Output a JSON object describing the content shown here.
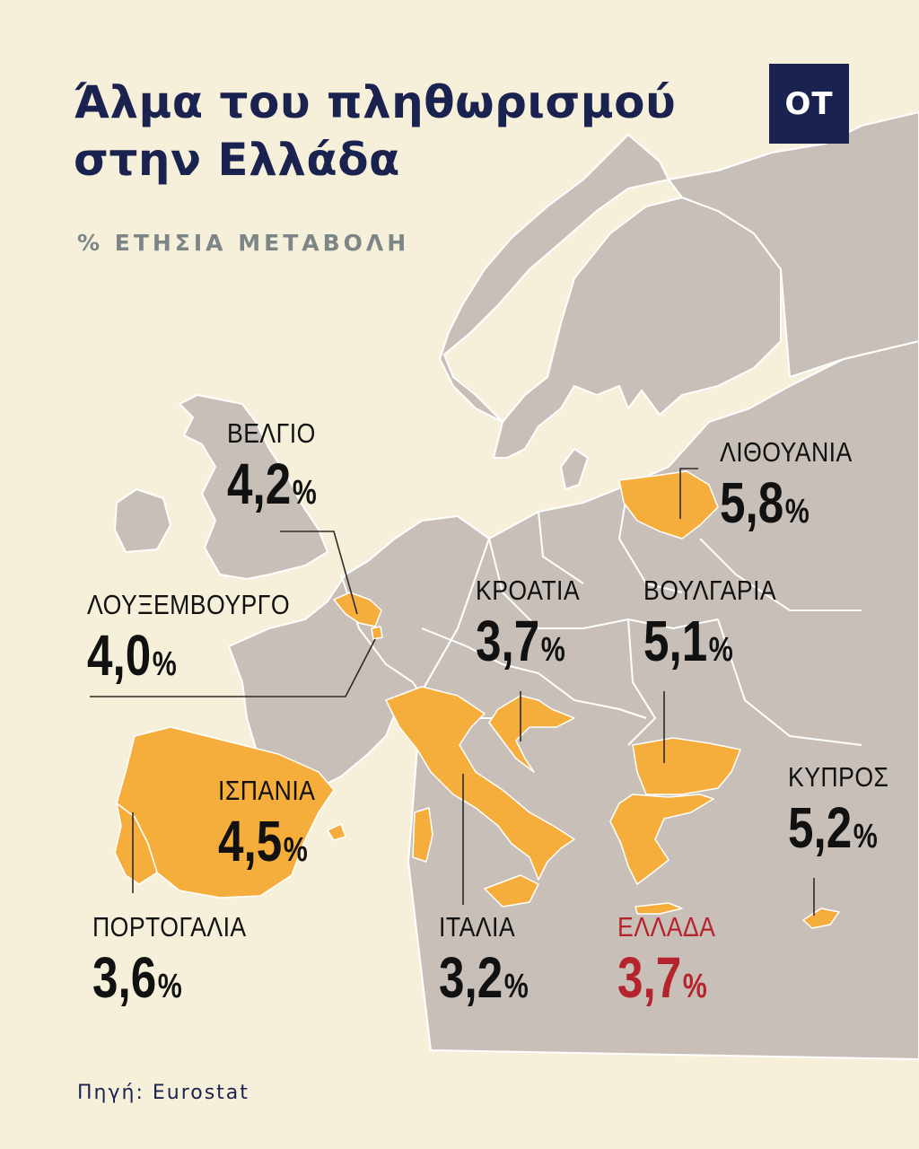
{
  "header": {
    "title_line1": "Άλμα του πληθωρισμού",
    "title_line2": "στην Ελλάδα",
    "subtitle": "% ΕΤΗΣΙΑ ΜΕΤΑΒΟΛΗ",
    "logo": "OT"
  },
  "colors": {
    "background": "#f6f0da",
    "land": "#c8c0b8",
    "highlighted_country": "#f5ad3c",
    "title": "#1a2350",
    "greece_label": "#b5232d"
  },
  "countries": {
    "belgium": {
      "name": "ΒΕΛΓΙΟ",
      "value": "4,2",
      "unit": "%"
    },
    "luxembourg": {
      "name": "ΛΟΥΞΕΜΒΟΥΡΓΟ",
      "value": "4,0",
      "unit": "%"
    },
    "lithuania": {
      "name": "ΛΙΘΟΥΑΝΙΑ",
      "value": "5,8",
      "unit": "%"
    },
    "croatia": {
      "name": "ΚΡΟΑΤΙΑ",
      "value": "3,7",
      "unit": "%"
    },
    "bulgaria": {
      "name": "ΒΟΥΛΓΑΡΙΑ",
      "value": "5,1",
      "unit": "%"
    },
    "spain": {
      "name": "ΙΣΠΑΝΙΑ",
      "value": "4,5",
      "unit": "%"
    },
    "cyprus": {
      "name": "ΚΥΠΡΟΣ",
      "value": "5,2",
      "unit": "%"
    },
    "portugal": {
      "name": "ΠΟΡΤΟΓΑΛΙΑ",
      "value": "3,6",
      "unit": "%"
    },
    "italy": {
      "name": "ΙΤΑΛΙΑ",
      "value": "3,2",
      "unit": "%"
    },
    "greece": {
      "name": "ΕΛΛΑΔΑ",
      "value": "3,7",
      "unit": "%"
    }
  },
  "source": "Πηγή: Eurostat"
}
